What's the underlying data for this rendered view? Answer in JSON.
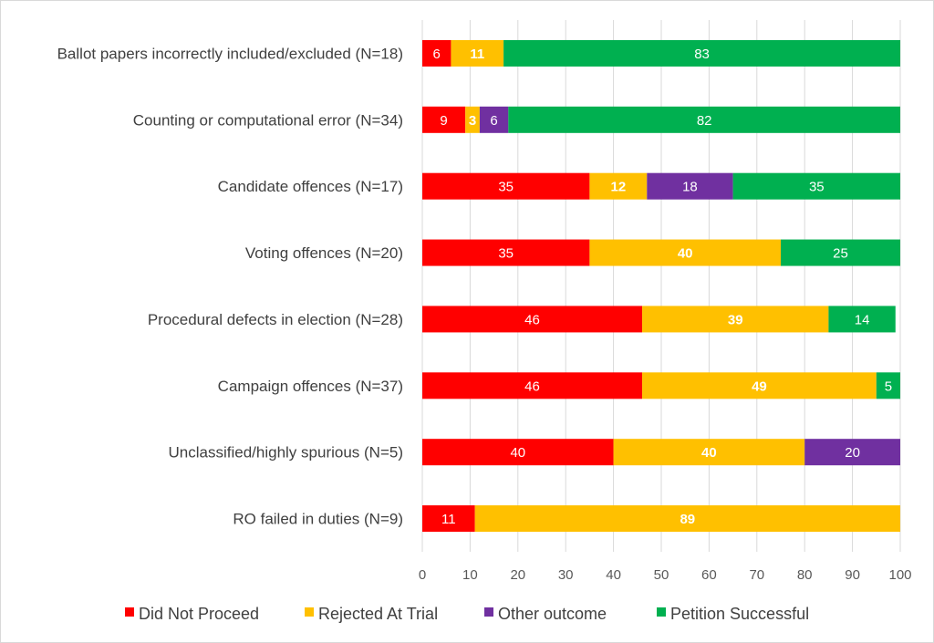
{
  "chart_data": {
    "type": "bar",
    "orientation": "horizontal",
    "stacked": true,
    "categories": [
      "Ballot papers incorrectly included/excluded (N=18)",
      "Counting or computational error (N=34)",
      "Candidate offences (N=17)",
      "Voting offences (N=20)",
      "Procedural defects in election (N=28)",
      "Campaign offences (N=37)",
      "Unclassified/highly spurious (N=5)",
      "RO failed in duties (N=9)"
    ],
    "series": [
      {
        "name": "Did Not Proceed",
        "color": "#ff0000",
        "values": [
          6,
          9,
          35,
          35,
          46,
          46,
          40,
          11
        ]
      },
      {
        "name": "Rejected At Trial",
        "color": "#ffc000",
        "values": [
          11,
          3,
          12,
          40,
          39,
          49,
          40,
          89
        ]
      },
      {
        "name": "Other outcome",
        "color": "#7030a0",
        "values": [
          0,
          6,
          18,
          0,
          0,
          0,
          20,
          0
        ]
      },
      {
        "name": "Petition Successful",
        "color": "#00b050",
        "values": [
          83,
          82,
          35,
          25,
          14,
          5,
          0,
          0
        ]
      }
    ],
    "xlim": [
      0,
      100
    ],
    "xticks": [
      "0",
      "10",
      "20",
      "30",
      "40",
      "50",
      "60",
      "70",
      "80",
      "90",
      "100"
    ],
    "grid": "vertical",
    "legend": "bottom"
  }
}
